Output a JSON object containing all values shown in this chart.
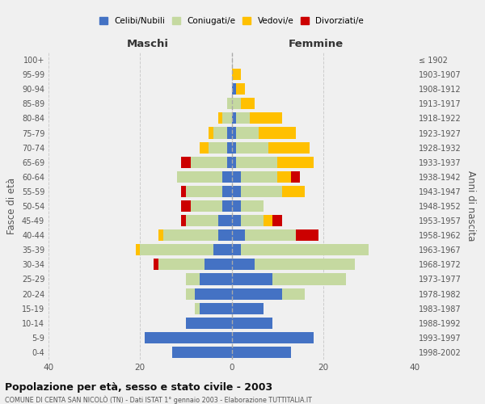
{
  "age_groups": [
    "0-4",
    "5-9",
    "10-14",
    "15-19",
    "20-24",
    "25-29",
    "30-34",
    "35-39",
    "40-44",
    "45-49",
    "50-54",
    "55-59",
    "60-64",
    "65-69",
    "70-74",
    "75-79",
    "80-84",
    "85-89",
    "90-94",
    "95-99",
    "100+"
  ],
  "birth_years": [
    "1998-2002",
    "1993-1997",
    "1988-1992",
    "1983-1987",
    "1978-1982",
    "1973-1977",
    "1968-1972",
    "1963-1967",
    "1958-1962",
    "1953-1957",
    "1948-1952",
    "1943-1947",
    "1938-1942",
    "1933-1937",
    "1928-1932",
    "1923-1927",
    "1918-1922",
    "1913-1917",
    "1908-1912",
    "1903-1907",
    "≤ 1902"
  ],
  "colors": {
    "celibi": "#4472c4",
    "coniugati": "#c5d9a0",
    "vedovi": "#ffc000",
    "divorziati": "#cc0000"
  },
  "maschi": {
    "celibi": [
      13,
      19,
      10,
      7,
      8,
      7,
      6,
      4,
      3,
      3,
      2,
      2,
      2,
      1,
      1,
      1,
      0,
      0,
      0,
      0,
      0
    ],
    "coniugati": [
      0,
      0,
      0,
      1,
      2,
      3,
      10,
      16,
      12,
      7,
      7,
      8,
      10,
      8,
      4,
      3,
      2,
      1,
      0,
      0,
      0
    ],
    "vedovi": [
      0,
      0,
      0,
      0,
      0,
      0,
      0,
      1,
      1,
      0,
      0,
      0,
      0,
      0,
      2,
      1,
      1,
      0,
      0,
      0,
      0
    ],
    "divorziati": [
      0,
      0,
      0,
      0,
      0,
      0,
      1,
      0,
      0,
      1,
      2,
      1,
      0,
      2,
      0,
      0,
      0,
      0,
      0,
      0,
      0
    ]
  },
  "femmine": {
    "celibi": [
      13,
      18,
      9,
      7,
      11,
      9,
      5,
      2,
      3,
      2,
      2,
      2,
      2,
      1,
      1,
      1,
      1,
      0,
      1,
      0,
      0
    ],
    "coniugati": [
      0,
      0,
      0,
      0,
      5,
      16,
      22,
      28,
      11,
      5,
      5,
      9,
      8,
      9,
      7,
      5,
      3,
      2,
      0,
      0,
      0
    ],
    "vedovi": [
      0,
      0,
      0,
      0,
      0,
      0,
      0,
      0,
      0,
      2,
      0,
      5,
      3,
      8,
      9,
      8,
      7,
      3,
      2,
      2,
      0
    ],
    "divorziati": [
      0,
      0,
      0,
      0,
      0,
      0,
      0,
      0,
      5,
      2,
      0,
      0,
      2,
      0,
      0,
      0,
      0,
      0,
      0,
      0,
      0
    ]
  },
  "xlim": 40,
  "title": "Popolazione per età, sesso e stato civile - 2003",
  "subtitle": "COMUNE DI CENTA SAN NICOLÒ (TN) - Dati ISTAT 1° gennaio 2003 - Elaborazione TUTTITALIA.IT",
  "ylabel_left": "Fasce di età",
  "ylabel_right": "Anni di nascita",
  "xlabel_left": "Maschi",
  "xlabel_right": "Femmine",
  "bg_color": "#f0f0f0",
  "legend_labels": [
    "Celibi/Nubili",
    "Coniugati/e",
    "Vedovi/e",
    "Divorziati/e"
  ]
}
